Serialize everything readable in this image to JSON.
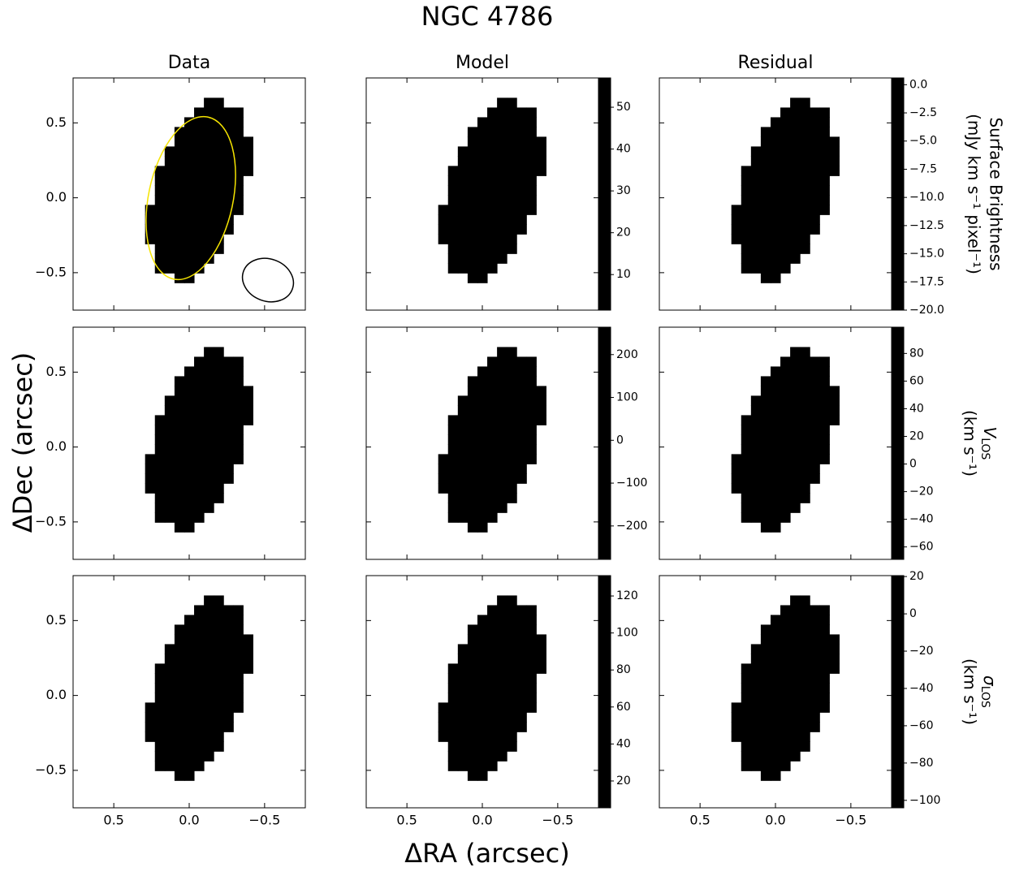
{
  "chart_data": {
    "type": "heatmap-grid",
    "title": "NGC 4786",
    "column_titles": [
      "Data",
      "Model",
      "Residual"
    ],
    "xlabel": "ΔRA (arcsec)",
    "ylabel": "ΔDec (arcsec)",
    "xlim": [
      0.77,
      -0.77
    ],
    "ylim": [
      -0.75,
      0.8
    ],
    "xticks": [
      0.5,
      {
        "value": 0,
        "label": "0.0"
      },
      {
        "value": -0.5,
        "label": "−0.5"
      }
    ],
    "yticks": [
      0.5,
      {
        "value": 0,
        "label": "0.0"
      },
      {
        "value": -0.5,
        "label": "−0.5"
      }
    ],
    "rows": [
      {
        "colormap": "bone",
        "label": {
          "line1": "Surface Brightness",
          "line2": "(mJy km s⁻¹ pixel⁻¹)"
        },
        "colorbars": [
          {
            "lim": [
              1.5,
              57
            ],
            "ticks": [
              10,
              20,
              30,
              40,
              50
            ]
          },
          {
            "lim": [
              -20,
              0.6
            ],
            "ticks": [
              {
                "value": 0,
                "label": "0.0"
              },
              {
                "value": -2.5,
                "label": "−2.5"
              },
              {
                "value": -5,
                "label": "−5.0"
              },
              {
                "value": -7.5,
                "label": "−7.5"
              },
              {
                "value": -10,
                "label": "−10.0"
              },
              {
                "value": -12.5,
                "label": "−12.5"
              },
              {
                "value": -15,
                "label": "−15.0"
              },
              {
                "value": -17.5,
                "label": "−17.5"
              },
              {
                "value": -20,
                "label": "−20.0"
              }
            ]
          }
        ]
      },
      {
        "colormap": "jet",
        "label": {
          "symbol": "V",
          "subscript": "LOS",
          "line2": "(km s⁻¹)"
        },
        "colorbars": [
          {
            "lim": [
              -278,
              264
            ],
            "ticks": [
              200,
              100,
              0,
              {
                "value": -100,
                "label": "−100"
              },
              {
                "value": -200,
                "label": "−200"
              }
            ]
          },
          {
            "lim": [
              -69,
              99
            ],
            "ticks": [
              80,
              60,
              40,
              20,
              0,
              {
                "value": -20,
                "label": "−20"
              },
              {
                "value": -40,
                "label": "−40"
              },
              {
                "value": -60,
                "label": "−60"
              }
            ]
          }
        ]
      },
      {
        "colormap": "bone",
        "label": {
          "symbol": "σ",
          "subscript": "LOS",
          "line2": "(km s⁻¹)"
        },
        "colorbars": [
          {
            "lim": [
              5.5,
              131
            ],
            "ticks": [
              120,
              100,
              80,
              60,
              40,
              20
            ]
          },
          {
            "lim": [
              -104,
              20.5
            ],
            "ticks": [
              20,
              0,
              {
                "value": -20,
                "label": "−20"
              },
              {
                "value": -40,
                "label": "−40"
              },
              {
                "value": -60,
                "label": "−60"
              },
              {
                "value": -80,
                "label": "−80"
              },
              {
                "value": -100,
                "label": "−100"
              }
            ]
          }
        ]
      }
    ]
  }
}
